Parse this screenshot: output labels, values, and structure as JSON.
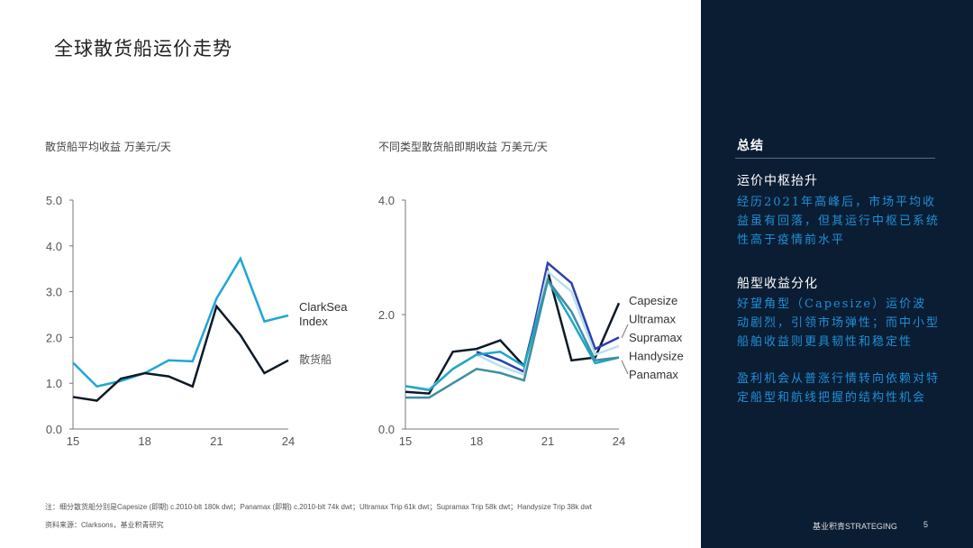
{
  "title": "全球散货船运价走势",
  "chart_data": [
    {
      "type": "line",
      "title": "散货船平均收益 万美元/天",
      "x": [
        15,
        16,
        17,
        18,
        19,
        20,
        21,
        22,
        23,
        24
      ],
      "xticks": [
        "15",
        "18",
        "21",
        "24"
      ],
      "yticks": [
        "0.0",
        "1.0",
        "2.0",
        "3.0",
        "4.0",
        "5.0"
      ],
      "ylim": [
        0,
        5
      ],
      "series": [
        {
          "name": "ClarkSea Index",
          "label": "ClarkSea Index",
          "color": "#1fa6d6",
          "values": [
            1.45,
            0.93,
            1.05,
            1.22,
            1.5,
            1.48,
            2.85,
            3.72,
            2.35,
            2.48
          ]
        },
        {
          "name": "散货船",
          "label": "散货船",
          "color": "#0d1a26",
          "values": [
            0.7,
            0.62,
            1.1,
            1.22,
            1.15,
            0.93,
            2.68,
            2.05,
            1.22,
            1.5
          ]
        }
      ]
    },
    {
      "type": "line",
      "title": "不同类型散货船即期收益 万美元/天",
      "x": [
        15,
        16,
        17,
        18,
        19,
        20,
        21,
        22,
        23,
        24
      ],
      "xticks": [
        "15",
        "18",
        "21",
        "24"
      ],
      "yticks": [
        "0.0",
        "2.0",
        "4.0"
      ],
      "ylim": [
        0,
        4
      ],
      "series": [
        {
          "name": "Capesize",
          "color": "#0d1a26",
          "values": [
            0.65,
            0.62,
            1.35,
            1.4,
            1.55,
            1.1,
            2.75,
            1.2,
            1.25,
            2.2
          ]
        },
        {
          "name": "Ultramax",
          "color": "#2b3fb0",
          "values": [
            null,
            null,
            null,
            1.35,
            1.2,
            1.0,
            2.9,
            2.55,
            1.4,
            1.6
          ]
        },
        {
          "name": "Supramax",
          "color": "#b8e0ef",
          "values": [
            0.75,
            0.7,
            1.05,
            1.3,
            1.1,
            0.95,
            2.75,
            2.4,
            1.3,
            1.45
          ]
        },
        {
          "name": "Handysize",
          "color": "#1fa6c8",
          "values": [
            0.75,
            0.68,
            1.05,
            1.3,
            1.35,
            1.1,
            2.6,
            1.9,
            1.15,
            1.25
          ]
        },
        {
          "name": "Panamax",
          "color": "#3f8fa0",
          "values": [
            0.55,
            0.55,
            0.8,
            1.05,
            0.98,
            0.85,
            2.6,
            2.05,
            1.2,
            1.25
          ]
        }
      ]
    }
  ],
  "note": "注：细分散货船分别是Capesize (即期) c.2010-blt 180k dwt；Panamax (即期) c.2010-blt 74k dwt；Ultramax Trip 61k dwt；Supramax Trip 58k dwt；Handysize Trip 38k dwt",
  "source": "资料来源：Clarksons，基业积青研究",
  "sidebar": {
    "heading": "总结",
    "s1_title": "运价中枢抬升",
    "s1_text": "经历2021年高峰后，市场平均收益虽有回落，但其运行中枢已系统性高于疫情前水平",
    "s2_title": "船型收益分化",
    "s2_text": "好望角型（Capesize）运价波动剧烈，引领市场弹性；而中小型船舶收益则更具韧性和稳定性",
    "s3_text": "盈利机会从普涨行情转向依赖对特定船型和航线把握的结构性机会",
    "brand": "基业积青STRATEGING",
    "page": "5"
  }
}
